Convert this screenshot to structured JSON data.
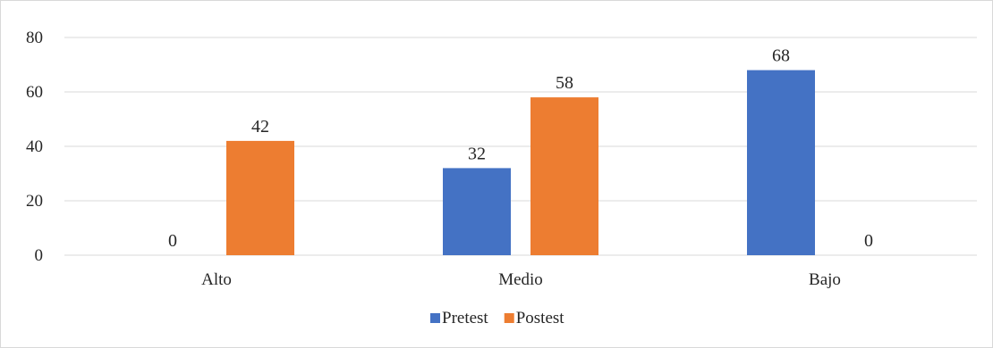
{
  "chart_data": {
    "type": "bar",
    "categories": [
      "Alto",
      "Medio",
      "Bajo"
    ],
    "series": [
      {
        "name": "Pretest",
        "values": [
          0,
          32,
          68
        ],
        "color": "#4472c4"
      },
      {
        "name": "Postest",
        "values": [
          42,
          58,
          0
        ],
        "color": "#ed7d31"
      }
    ],
    "y_ticks": [
      0,
      20,
      40,
      60,
      80
    ],
    "ylim": [
      0,
      80
    ],
    "grid": true,
    "data_labels": true,
    "legend_position": "bottom",
    "title": "",
    "xlabel": "",
    "ylabel": ""
  }
}
